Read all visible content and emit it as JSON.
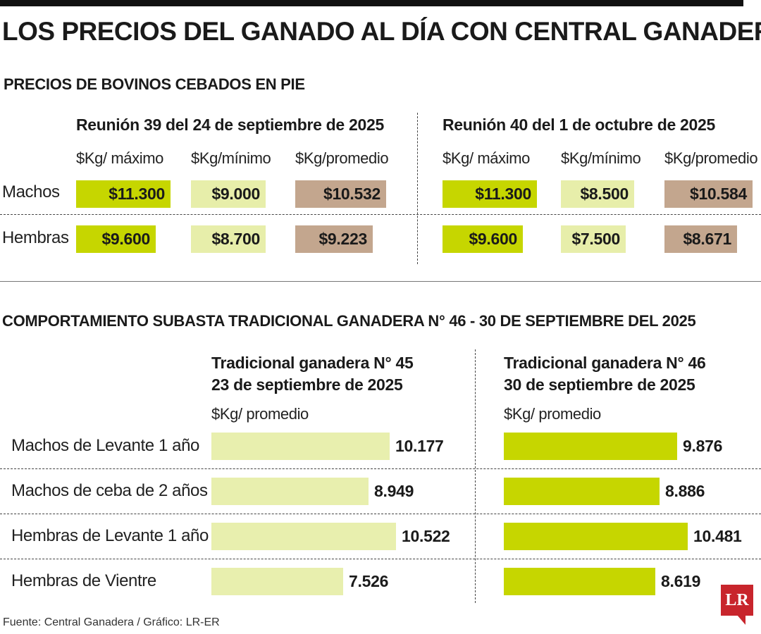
{
  "title": "LOS PRECIOS DEL GANADO AL DÍA CON CENTRAL GANADERA",
  "colors": {
    "max": "#c6d600",
    "min": "#e7eeaa",
    "avg": "#c3a68e",
    "bar_prev": "#e8efae",
    "bar_curr": "#c6d600",
    "accent": "#c8252c"
  },
  "section1": {
    "title": "PRECIOS DE BOVINOS CEBADOS EN PIE",
    "meetings": [
      {
        "title": "Reunión 39 del 24 de septiembre de 2025",
        "headers": [
          "$Kg/ máximo",
          "$Kg/mínimo",
          "$Kg/promedio"
        ]
      },
      {
        "title": "Reunión 40 del 1 de octubre de 2025",
        "headers": [
          "$Kg/ máximo",
          "$Kg/mínimo",
          "$Kg/promedio"
        ]
      }
    ],
    "rows": [
      "Machos",
      "Hembras"
    ]
  },
  "section2": {
    "title": "COMPORTAMIENTO SUBASTA TRADICIONAL GANADERA N° 46 - 30 DE SEPTIEMBRE DEL 2025",
    "auctions": [
      {
        "title": "Tradicional ganadera N° 45",
        "date": "23 de septiembre de 2025",
        "unit": "$Kg/ promedio"
      },
      {
        "title": "Tradicional ganadera N° 46",
        "date": "30 de septiembre de 2025",
        "unit": "$Kg/ promedio"
      }
    ]
  },
  "chart_data": [
    {
      "type": "table",
      "title": "PRECIOS DE BOVINOS CEBADOS EN PIE",
      "columns": [
        "$Kg/ máximo",
        "$Kg/mínimo",
        "$Kg/promedio"
      ],
      "rows": [
        "Machos",
        "Hembras"
      ],
      "meetings": [
        {
          "name": "Reunión 39 del 24 de septiembre de 2025",
          "values": [
            [
              "$11.300",
              "$9.000",
              "$10.532"
            ],
            [
              "$9.600",
              "$8.700",
              "$9.223"
            ]
          ],
          "numeric": [
            [
              11300,
              9000,
              10532
            ],
            [
              9600,
              8700,
              9223
            ]
          ]
        },
        {
          "name": "Reunión 40 del 1 de octubre de 2025",
          "values": [
            [
              "$11.300",
              "$8.500",
              "$10.584"
            ],
            [
              "$9.600",
              "$7.500",
              "$8.671"
            ]
          ],
          "numeric": [
            [
              11300,
              8500,
              10584
            ],
            [
              9600,
              7500,
              8671
            ]
          ]
        }
      ]
    },
    {
      "type": "bar",
      "title": "COMPORTAMIENTO SUBASTA TRADICIONAL GANADERA N° 46 - 30 DE SEPTIEMBRE DEL 2025",
      "categories": [
        "Machos de Levante 1 año",
        "Machos de ceba de 2 años",
        "Hembras de Levante 1 año",
        "Hembras de Vientre"
      ],
      "series": [
        {
          "name": "Tradicional ganadera N° 45",
          "values": [
            10177,
            8949,
            10522,
            7526
          ],
          "labels": [
            "10.177",
            "8.949",
            "10.522",
            "7.526"
          ]
        },
        {
          "name": "Tradicional ganadera N° 46",
          "values": [
            9876,
            8886,
            10481,
            8619
          ],
          "labels": [
            "9.876",
            "8.886",
            "10.481",
            "8.619"
          ]
        }
      ],
      "ylabel": "$Kg/ promedio"
    }
  ],
  "source": "Fuente: Central Ganadera / Gráfico: LR-ER",
  "logo_text": "LR"
}
